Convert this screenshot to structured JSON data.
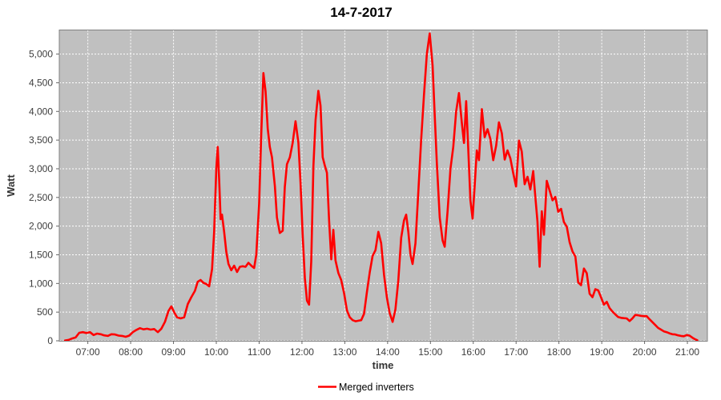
{
  "page": {
    "background": "#ffffff"
  },
  "chart_data": {
    "type": "line",
    "title": "14-7-2017",
    "xlabel": "time",
    "ylabel": "Watt",
    "plot_background": "#c0c0c0",
    "plot_border_color": "#808080",
    "gridline_color": "#ffffff",
    "legend": {
      "position": "bottom-center",
      "border_color": "#000000",
      "background": "#ffffff"
    },
    "x_axis": {
      "ticks": [
        "07:00",
        "08:00",
        "09:00",
        "10:00",
        "11:00",
        "12:00",
        "13:00",
        "14:00",
        "15:00",
        "16:00",
        "17:00",
        "18:00",
        "19:00",
        "20:00",
        "21:00"
      ],
      "range_minutes": [
        380,
        1288
      ]
    },
    "y_axis": {
      "ticks": [
        {
          "value": 0,
          "label": "0"
        },
        {
          "value": 500,
          "label": "500"
        },
        {
          "value": 1000,
          "label": "1,000"
        },
        {
          "value": 1500,
          "label": "1,500"
        },
        {
          "value": 2000,
          "label": "2,000"
        },
        {
          "value": 2500,
          "label": "2,500"
        },
        {
          "value": 3000,
          "label": "3,000"
        },
        {
          "value": 3500,
          "label": "3,500"
        },
        {
          "value": 4000,
          "label": "4,000"
        },
        {
          "value": 4500,
          "label": "4,500"
        },
        {
          "value": 5000,
          "label": "5,000"
        }
      ],
      "range": [
        0,
        5420
      ]
    },
    "series": [
      {
        "name": "Merged inverters",
        "color": "#ff0000",
        "points": [
          [
            "06:28",
            5
          ],
          [
            "06:33",
            15
          ],
          [
            "06:38",
            40
          ],
          [
            "06:43",
            60
          ],
          [
            "06:48",
            140
          ],
          [
            "06:53",
            150
          ],
          [
            "06:58",
            135
          ],
          [
            "07:03",
            150
          ],
          [
            "07:08",
            100
          ],
          [
            "07:13",
            125
          ],
          [
            "07:18",
            115
          ],
          [
            "07:23",
            95
          ],
          [
            "07:28",
            85
          ],
          [
            "07:33",
            115
          ],
          [
            "07:38",
            110
          ],
          [
            "07:43",
            90
          ],
          [
            "07:48",
            85
          ],
          [
            "07:53",
            70
          ],
          [
            "07:58",
            90
          ],
          [
            "08:03",
            150
          ],
          [
            "08:08",
            190
          ],
          [
            "08:13",
            220
          ],
          [
            "08:18",
            200
          ],
          [
            "08:23",
            210
          ],
          [
            "08:28",
            195
          ],
          [
            "08:33",
            205
          ],
          [
            "08:38",
            150
          ],
          [
            "08:43",
            210
          ],
          [
            "08:48",
            330
          ],
          [
            "08:53",
            520
          ],
          [
            "08:57",
            600
          ],
          [
            "09:01",
            500
          ],
          [
            "09:05",
            410
          ],
          [
            "09:10",
            390
          ],
          [
            "09:15",
            410
          ],
          [
            "09:20",
            640
          ],
          [
            "09:25",
            760
          ],
          [
            "09:30",
            870
          ],
          [
            "09:34",
            1030
          ],
          [
            "09:38",
            1060
          ],
          [
            "09:42",
            1010
          ],
          [
            "09:46",
            990
          ],
          [
            "09:50",
            950
          ],
          [
            "09:54",
            1250
          ],
          [
            "09:57",
            1900
          ],
          [
            "10:00",
            3000
          ],
          [
            "10:02",
            3380
          ],
          [
            "10:04",
            2800
          ],
          [
            "10:06",
            2120
          ],
          [
            "10:08",
            2200
          ],
          [
            "10:11",
            1900
          ],
          [
            "10:14",
            1550
          ],
          [
            "10:17",
            1340
          ],
          [
            "10:21",
            1230
          ],
          [
            "10:25",
            1310
          ],
          [
            "10:29",
            1200
          ],
          [
            "10:33",
            1290
          ],
          [
            "10:37",
            1300
          ],
          [
            "10:41",
            1290
          ],
          [
            "10:45",
            1360
          ],
          [
            "10:49",
            1310
          ],
          [
            "10:53",
            1270
          ],
          [
            "10:56",
            1500
          ],
          [
            "11:00",
            2400
          ],
          [
            "11:03",
            3600
          ],
          [
            "11:06",
            4670
          ],
          [
            "11:09",
            4350
          ],
          [
            "11:12",
            3700
          ],
          [
            "11:15",
            3380
          ],
          [
            "11:18",
            3200
          ],
          [
            "11:22",
            2700
          ],
          [
            "11:25",
            2150
          ],
          [
            "11:29",
            1880
          ],
          [
            "11:33",
            1920
          ],
          [
            "11:36",
            2680
          ],
          [
            "11:39",
            3080
          ],
          [
            "11:43",
            3200
          ],
          [
            "11:47",
            3450
          ],
          [
            "11:51",
            3830
          ],
          [
            "11:55",
            3450
          ],
          [
            "11:58",
            2770
          ],
          [
            "12:01",
            1850
          ],
          [
            "12:04",
            1100
          ],
          [
            "12:07",
            700
          ],
          [
            "12:10",
            630
          ],
          [
            "12:13",
            1380
          ],
          [
            "12:16",
            3040
          ],
          [
            "12:19",
            3850
          ],
          [
            "12:23",
            4360
          ],
          [
            "12:26",
            4100
          ],
          [
            "12:29",
            3200
          ],
          [
            "12:32",
            3060
          ],
          [
            "12:35",
            2930
          ],
          [
            "12:38",
            2100
          ],
          [
            "12:41",
            1420
          ],
          [
            "12:44",
            1935
          ],
          [
            "12:47",
            1400
          ],
          [
            "12:51",
            1180
          ],
          [
            "12:55",
            1060
          ],
          [
            "12:59",
            830
          ],
          [
            "13:03",
            530
          ],
          [
            "13:07",
            410
          ],
          [
            "13:11",
            360
          ],
          [
            "13:15",
            340
          ],
          [
            "13:19",
            350
          ],
          [
            "13:23",
            360
          ],
          [
            "13:27",
            470
          ],
          [
            "13:31",
            850
          ],
          [
            "13:35",
            1200
          ],
          [
            "13:39",
            1480
          ],
          [
            "13:43",
            1580
          ],
          [
            "13:47",
            1900
          ],
          [
            "13:51",
            1700
          ],
          [
            "13:55",
            1150
          ],
          [
            "13:59",
            750
          ],
          [
            "14:03",
            480
          ],
          [
            "14:07",
            330
          ],
          [
            "14:11",
            550
          ],
          [
            "14:15",
            1050
          ],
          [
            "14:19",
            1800
          ],
          [
            "14:23",
            2100
          ],
          [
            "14:26",
            2200
          ],
          [
            "14:29",
            1900
          ],
          [
            "14:32",
            1500
          ],
          [
            "14:35",
            1340
          ],
          [
            "14:39",
            1700
          ],
          [
            "14:43",
            2600
          ],
          [
            "14:47",
            3500
          ],
          [
            "14:51",
            4300
          ],
          [
            "14:55",
            5000
          ],
          [
            "14:59",
            5360
          ],
          [
            "15:03",
            4800
          ],
          [
            "15:06",
            3950
          ],
          [
            "15:09",
            3100
          ],
          [
            "15:13",
            2150
          ],
          [
            "15:17",
            1750
          ],
          [
            "15:20",
            1640
          ],
          [
            "15:24",
            2260
          ],
          [
            "15:28",
            3000
          ],
          [
            "15:32",
            3380
          ],
          [
            "15:36",
            4000
          ],
          [
            "15:40",
            4320
          ],
          [
            "15:44",
            3800
          ],
          [
            "15:47",
            3450
          ],
          [
            "15:50",
            4180
          ],
          [
            "15:53",
            3350
          ],
          [
            "15:56",
            2450
          ],
          [
            "15:59",
            2130
          ],
          [
            "16:02",
            2700
          ],
          [
            "16:05",
            3320
          ],
          [
            "16:08",
            3150
          ],
          [
            "16:12",
            4040
          ],
          [
            "16:16",
            3550
          ],
          [
            "16:20",
            3690
          ],
          [
            "16:24",
            3520
          ],
          [
            "16:28",
            3150
          ],
          [
            "16:32",
            3400
          ],
          [
            "16:36",
            3810
          ],
          [
            "16:40",
            3620
          ],
          [
            "16:44",
            3160
          ],
          [
            "16:48",
            3320
          ],
          [
            "16:52",
            3180
          ],
          [
            "16:56",
            2920
          ],
          [
            "17:00",
            2690
          ],
          [
            "17:04",
            3490
          ],
          [
            "17:08",
            3300
          ],
          [
            "17:12",
            2730
          ],
          [
            "17:16",
            2860
          ],
          [
            "17:20",
            2640
          ],
          [
            "17:24",
            2960
          ],
          [
            "17:27",
            2500
          ],
          [
            "17:30",
            2080
          ],
          [
            "17:33",
            1290
          ],
          [
            "17:36",
            2260
          ],
          [
            "17:39",
            1850
          ],
          [
            "17:43",
            2790
          ],
          [
            "17:47",
            2620
          ],
          [
            "17:51",
            2450
          ],
          [
            "17:55",
            2510
          ],
          [
            "17:59",
            2250
          ],
          [
            "18:03",
            2300
          ],
          [
            "18:07",
            2070
          ],
          [
            "18:11",
            1990
          ],
          [
            "18:15",
            1720
          ],
          [
            "18:19",
            1560
          ],
          [
            "18:23",
            1470
          ],
          [
            "18:27",
            1020
          ],
          [
            "18:31",
            970
          ],
          [
            "18:35",
            1260
          ],
          [
            "18:39",
            1180
          ],
          [
            "18:43",
            820
          ],
          [
            "18:47",
            760
          ],
          [
            "18:51",
            900
          ],
          [
            "18:55",
            880
          ],
          [
            "18:59",
            760
          ],
          [
            "19:03",
            630
          ],
          [
            "19:07",
            680
          ],
          [
            "19:11",
            570
          ],
          [
            "19:15",
            510
          ],
          [
            "19:19",
            460
          ],
          [
            "19:23",
            415
          ],
          [
            "19:27",
            400
          ],
          [
            "19:31",
            395
          ],
          [
            "19:35",
            390
          ],
          [
            "19:39",
            345
          ],
          [
            "19:43",
            390
          ],
          [
            "19:47",
            450
          ],
          [
            "19:51",
            445
          ],
          [
            "19:55",
            435
          ],
          [
            "19:59",
            430
          ],
          [
            "20:03",
            430
          ],
          [
            "20:07",
            375
          ],
          [
            "20:11",
            325
          ],
          [
            "20:15",
            275
          ],
          [
            "20:19",
            225
          ],
          [
            "20:23",
            195
          ],
          [
            "20:27",
            165
          ],
          [
            "20:31",
            150
          ],
          [
            "20:35",
            130
          ],
          [
            "20:39",
            115
          ],
          [
            "20:43",
            110
          ],
          [
            "20:47",
            95
          ],
          [
            "20:51",
            85
          ],
          [
            "20:55",
            80
          ],
          [
            "20:59",
            100
          ],
          [
            "21:03",
            90
          ],
          [
            "21:07",
            55
          ],
          [
            "21:11",
            25
          ],
          [
            "21:14",
            10
          ]
        ]
      }
    ]
  }
}
